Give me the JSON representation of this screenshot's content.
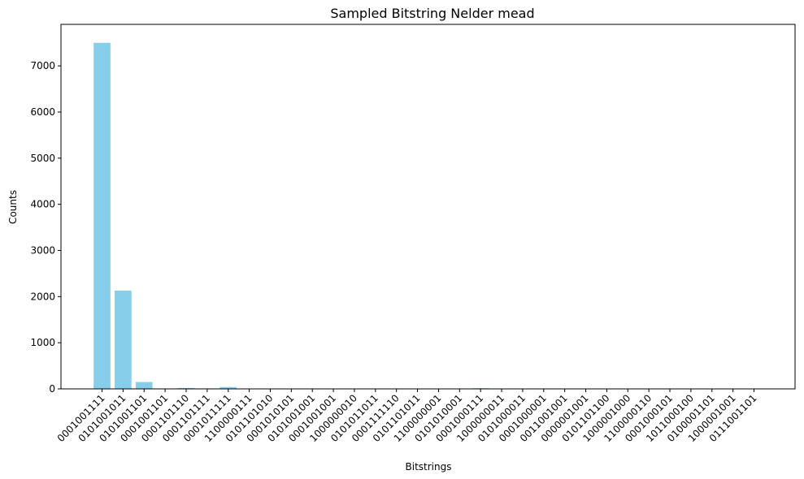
{
  "chart_data": {
    "type": "bar",
    "title": "Sampled Bitstring Nelder mead",
    "xlabel": "Bitstrings",
    "ylabel": "Counts",
    "ylim": [
      0,
      7900
    ],
    "yticks": [
      0,
      1000,
      2000,
      3000,
      4000,
      5000,
      6000,
      7000
    ],
    "grid": false,
    "bar_color": "#87ceeb",
    "categories": [
      "0001001111",
      "0101001011",
      "0101001101",
      "0001001101",
      "0001101110",
      "0001101111",
      "0001011111",
      "1100000111",
      "0101101010",
      "0001010101",
      "0101001001",
      "0001001001",
      "1000000010",
      "0101011011",
      "0001111110",
      "0101101011",
      "1100000001",
      "0101010001",
      "0001000111",
      "1000000011",
      "0101000011",
      "0001000001",
      "0011001001",
      "0000001001",
      "0101101100",
      "1000001000",
      "1100000110",
      "0001000101",
      "1011000100",
      "0100001101",
      "1000001001",
      "0111001101"
    ],
    "values": [
      7500,
      2130,
      150,
      8,
      20,
      10,
      40,
      8,
      6,
      5,
      5,
      5,
      4,
      4,
      4,
      4,
      4,
      4,
      15,
      4,
      4,
      3,
      3,
      3,
      3,
      3,
      3,
      3,
      3,
      3,
      3,
      3
    ]
  }
}
